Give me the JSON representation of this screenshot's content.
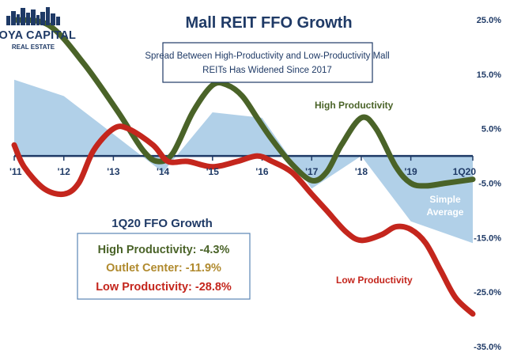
{
  "logo": {
    "line1": "HOYA CAPITAL",
    "line2": "REAL ESTATE"
  },
  "colors": {
    "high": "#4a6328",
    "low": "#c4261d",
    "outlet": "#b08a2e",
    "average_fill": "#a9cbe6",
    "axis": "#1f3a66",
    "title": "#1f3a66",
    "box_border": "#1f3a66"
  },
  "chart_data": {
    "type": "line",
    "title": "Mall REIT FFO Growth",
    "subtitle": "Spread Between High-Productivity and Low-Productivity Mall REITs Has Widened Since 2017",
    "x_tick_labels": [
      "'11",
      "'12",
      "'13",
      "'14",
      "'15",
      "'16",
      "'17",
      "'18",
      "'19",
      "1Q20"
    ],
    "y_tick_labels": [
      "25.0%",
      "15.0%",
      "5.0%",
      "-5.0%",
      "-15.0%",
      "-25.0%",
      "-35.0%"
    ],
    "ylim": [
      -35,
      25
    ],
    "grid": false,
    "series": [
      {
        "name": "High Productivity",
        "type": "line",
        "x": [
          2011.0,
          2011.7,
          2012.4,
          2013.1,
          2013.6,
          2013.9,
          2014.2,
          2014.6,
          2015.0,
          2015.3,
          2015.6,
          2015.9,
          2016.2,
          2016.6,
          2017.0,
          2017.3,
          2017.6,
          2018.0,
          2018.3,
          2018.7,
          2019.0,
          2019.3,
          2019.7,
          2020.25
        ],
        "values": [
          25,
          24,
          17,
          8,
          1,
          -1,
          0.5,
          8,
          13,
          13,
          11,
          7,
          3,
          -1.5,
          -4.5,
          -3,
          2,
          7,
          5,
          -2,
          -5,
          -5.5,
          -5,
          -4.3
        ]
      },
      {
        "name": "Low Productivity",
        "type": "line",
        "x": [
          2011.0,
          2011.2,
          2011.6,
          2012.0,
          2012.3,
          2012.6,
          2013.0,
          2013.3,
          2013.8,
          2014.1,
          2014.5,
          2015.0,
          2015.5,
          2015.9,
          2016.2,
          2016.6,
          2017.0,
          2017.3,
          2017.7,
          2018.0,
          2018.4,
          2018.7,
          2019.0,
          2019.3,
          2019.6,
          2019.9,
          2020.25
        ],
        "values": [
          2,
          -2,
          -6,
          -7,
          -5,
          1,
          5,
          5,
          2,
          -1,
          -1,
          -2,
          -1,
          0,
          -1,
          -3,
          -7,
          -10,
          -14,
          -15.5,
          -14.5,
          -13,
          -13.5,
          -16,
          -21,
          -26,
          -29
        ]
      },
      {
        "name": "Simple Average",
        "type": "area",
        "x": [
          2011.0,
          2012.0,
          2013.0,
          2014.0,
          2015.0,
          2016.0,
          2017.0,
          2018.0,
          2019.0,
          2020.25
        ],
        "values": [
          14,
          11,
          4,
          -3,
          8,
          7,
          -6,
          0,
          -12,
          -16
        ]
      }
    ],
    "annotations": {
      "high_label": "High Productivity",
      "low_label": "Low Productivity",
      "avg_label_line1": "Simple",
      "avg_label_line2": "Average"
    },
    "summary_box": {
      "title": "1Q20 FFO Growth",
      "rows": [
        {
          "label": "High Productivity: -4.3%",
          "key": "high"
        },
        {
          "label": "Outlet Center: -11.9%",
          "key": "outlet"
        },
        {
          "label": "Low Productivity: -28.8%",
          "key": "low"
        }
      ]
    }
  }
}
